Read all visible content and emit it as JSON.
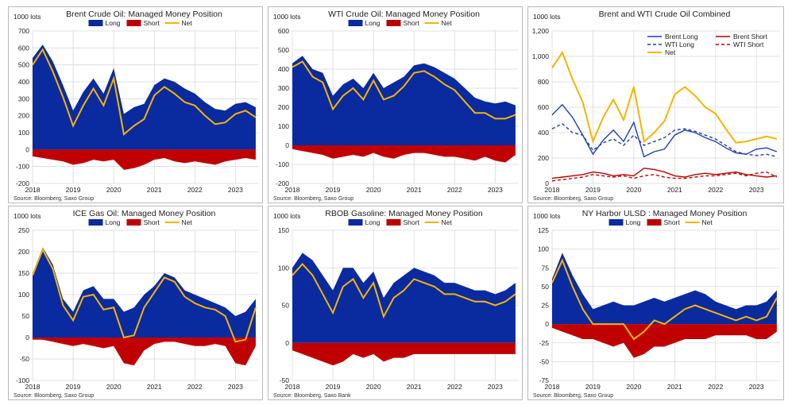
{
  "colors": {
    "long": "#0a2aa0",
    "short": "#c00000",
    "net": "#f5b400",
    "combined_long": "#1f3fb8",
    "combined_short": "#c00000",
    "combined_net": "#f5b400"
  },
  "chart_data": [
    {
      "type": "area",
      "title": "Brent Crude Oil: Managed Money Position",
      "unit": "1000 lots",
      "legend": [
        "Long",
        "Short",
        "Net"
      ],
      "legend_position": "top",
      "source": "Source: Bloomberg, Saxo Group",
      "x_ticks": [
        "2018",
        "2019",
        "2020",
        "2021",
        "2022",
        "2023"
      ],
      "y_ticks": [
        "700",
        "600",
        "500",
        "400",
        "300",
        "200",
        "100",
        "0",
        "-100",
        "-200"
      ],
      "ylim": [
        -200,
        700
      ],
      "x": [
        2018.0,
        2018.25,
        2018.5,
        2018.75,
        2019.0,
        2019.25,
        2019.5,
        2019.75,
        2020.0,
        2020.25,
        2020.5,
        2020.75,
        2021.0,
        2021.25,
        2021.5,
        2021.75,
        2022.0,
        2022.25,
        2022.5,
        2022.75,
        2023.0,
        2023.25,
        2023.5
      ],
      "series": [
        {
          "name": "Long",
          "values": [
            540,
            620,
            520,
            380,
            230,
            340,
            420,
            330,
            480,
            210,
            250,
            270,
            380,
            420,
            400,
            360,
            330,
            280,
            240,
            230,
            270,
            280,
            250
          ]
        },
        {
          "name": "Short",
          "values": [
            -40,
            -50,
            -60,
            -70,
            -90,
            -80,
            -60,
            -70,
            -60,
            -120,
            -110,
            -90,
            -60,
            -50,
            -70,
            -80,
            -70,
            -80,
            -90,
            -70,
            -60,
            -50,
            -60
          ]
        },
        {
          "name": "Net",
          "values": [
            500,
            590,
            460,
            310,
            140,
            260,
            360,
            260,
            420,
            90,
            140,
            180,
            320,
            370,
            330,
            280,
            260,
            200,
            150,
            160,
            210,
            230,
            190
          ]
        }
      ]
    },
    {
      "type": "area",
      "title": "WTI Crude Oil: Managed Money Position",
      "unit": "1000 lots",
      "legend": [
        "Long",
        "Short",
        "Net"
      ],
      "legend_position": "top",
      "source": "Source: Bloomberg, Saxo Group",
      "x_ticks": [
        "2018",
        "2019",
        "2020",
        "2021",
        "2022",
        "2023"
      ],
      "y_ticks": [
        "600",
        "500",
        "400",
        "300",
        "200",
        "100",
        "0",
        "-100",
        "-200"
      ],
      "ylim": [
        -200,
        600
      ],
      "x": [
        2018.0,
        2018.25,
        2018.5,
        2018.75,
        2019.0,
        2019.25,
        2019.5,
        2019.75,
        2020.0,
        2020.25,
        2020.5,
        2020.75,
        2021.0,
        2021.25,
        2021.5,
        2021.75,
        2022.0,
        2022.25,
        2022.5,
        2022.75,
        2023.0,
        2023.25,
        2023.5
      ],
      "series": [
        {
          "name": "Long",
          "values": [
            430,
            470,
            400,
            380,
            260,
            320,
            350,
            300,
            380,
            300,
            330,
            360,
            420,
            430,
            410,
            380,
            350,
            300,
            250,
            230,
            220,
            230,
            210
          ]
        },
        {
          "name": "Short",
          "values": [
            -20,
            -30,
            -40,
            -50,
            -70,
            -60,
            -50,
            -60,
            -40,
            -60,
            -70,
            -50,
            -40,
            -40,
            -50,
            -60,
            -60,
            -70,
            -80,
            -60,
            -80,
            -90,
            -50
          ]
        },
        {
          "name": "Net",
          "values": [
            410,
            440,
            360,
            330,
            190,
            260,
            300,
            240,
            340,
            240,
            260,
            310,
            380,
            390,
            360,
            320,
            290,
            230,
            170,
            170,
            140,
            140,
            160
          ]
        }
      ]
    },
    {
      "type": "line",
      "title": "Brent and WTI Crude Oil Combined",
      "unit": "1000 lots",
      "legend": [
        "Brent Long",
        "Brent Short",
        "WTI Long",
        "WTI Short",
        "Net"
      ],
      "legend_position": "top-right",
      "source": "Source: Bloomberg, Saxo Group",
      "x_ticks": [
        "2018",
        "2019",
        "2020",
        "2021",
        "2022",
        "2023"
      ],
      "y_ticks": [
        "1,200",
        "1,000",
        "800",
        "600",
        "400",
        "200",
        "0"
      ],
      "ylim": [
        0,
        1200
      ],
      "x": [
        2018.0,
        2018.25,
        2018.5,
        2018.75,
        2019.0,
        2019.25,
        2019.5,
        2019.75,
        2020.0,
        2020.25,
        2020.5,
        2020.75,
        2021.0,
        2021.25,
        2021.5,
        2021.75,
        2022.0,
        2022.25,
        2022.5,
        2022.75,
        2023.0,
        2023.25,
        2023.5
      ],
      "series": [
        {
          "name": "Brent Long",
          "values": [
            540,
            620,
            520,
            380,
            230,
            340,
            420,
            330,
            480,
            210,
            250,
            270,
            380,
            420,
            400,
            360,
            330,
            280,
            240,
            230,
            270,
            280,
            250
          ]
        },
        {
          "name": "Brent Short",
          "values": [
            40,
            50,
            60,
            70,
            90,
            80,
            60,
            70,
            60,
            120,
            110,
            90,
            60,
            50,
            70,
            80,
            70,
            80,
            90,
            70,
            60,
            50,
            60
          ]
        },
        {
          "name": "WTI Long",
          "values": [
            430,
            470,
            400,
            380,
            260,
            320,
            350,
            300,
            380,
            300,
            330,
            360,
            420,
            430,
            410,
            380,
            350,
            300,
            250,
            230,
            220,
            230,
            210
          ]
        },
        {
          "name": "WTI Short",
          "values": [
            20,
            30,
            40,
            50,
            70,
            60,
            50,
            60,
            40,
            60,
            70,
            50,
            40,
            40,
            50,
            60,
            60,
            70,
            80,
            60,
            80,
            90,
            50
          ]
        },
        {
          "name": "Net",
          "values": [
            910,
            1030,
            820,
            640,
            330,
            520,
            660,
            500,
            760,
            330,
            400,
            490,
            700,
            760,
            690,
            600,
            550,
            430,
            320,
            330,
            350,
            370,
            350
          ]
        }
      ]
    },
    {
      "type": "area",
      "title": "ICE Gas Oil: Managed Money Position",
      "unit": "1000 lots",
      "legend": [
        "Long",
        "Short",
        "Net"
      ],
      "legend_position": "top",
      "source": "Source: Bloomberg, Saxo Group",
      "x_ticks": [
        "2018",
        "2019",
        "2020",
        "2021",
        "2022",
        "2023"
      ],
      "y_ticks": [
        "250",
        "200",
        "150",
        "100",
        "50",
        "0",
        "-50",
        "-100"
      ],
      "ylim": [
        -100,
        250
      ],
      "x": [
        2018.0,
        2018.25,
        2018.5,
        2018.75,
        2019.0,
        2019.25,
        2019.5,
        2019.75,
        2020.0,
        2020.25,
        2020.5,
        2020.75,
        2021.0,
        2021.25,
        2021.5,
        2021.75,
        2022.0,
        2022.25,
        2022.5,
        2022.75,
        2023.0,
        2023.25,
        2023.5
      ],
      "series": [
        {
          "name": "Long",
          "values": [
            150,
            210,
            170,
            90,
            60,
            110,
            120,
            90,
            90,
            60,
            70,
            100,
            120,
            150,
            140,
            110,
            100,
            90,
            80,
            70,
            50,
            60,
            90
          ]
        },
        {
          "name": "Short",
          "values": [
            -5,
            -5,
            -10,
            -15,
            -20,
            -15,
            -20,
            -25,
            -20,
            -60,
            -65,
            -30,
            -15,
            -10,
            -10,
            -15,
            -20,
            -20,
            -15,
            -20,
            -60,
            -65,
            -20
          ]
        },
        {
          "name": "Net",
          "values": [
            145,
            205,
            160,
            75,
            40,
            95,
            100,
            65,
            70,
            0,
            5,
            70,
            105,
            140,
            130,
            95,
            80,
            70,
            65,
            50,
            -10,
            -5,
            70
          ]
        }
      ]
    },
    {
      "type": "area",
      "title": "RBOB Gasoline: Managed Money Position",
      "unit": "1000 lots",
      "legend": [
        "Long",
        "Short",
        "Net"
      ],
      "legend_position": "top",
      "source": "Source: Bloomberg, Saxo Bank",
      "x_ticks": [
        "2018",
        "2019",
        "2020",
        "2021",
        "2022",
        "2023"
      ],
      "y_ticks": [
        "150",
        "100",
        "50",
        "0",
        "-50"
      ],
      "ylim": [
        -50,
        150
      ],
      "x": [
        2018.0,
        2018.25,
        2018.5,
        2018.75,
        2019.0,
        2019.25,
        2019.5,
        2019.75,
        2020.0,
        2020.25,
        2020.5,
        2020.75,
        2021.0,
        2021.25,
        2021.5,
        2021.75,
        2022.0,
        2022.25,
        2022.5,
        2022.75,
        2023.0,
        2023.25,
        2023.5
      ],
      "series": [
        {
          "name": "Long",
          "values": [
            100,
            120,
            110,
            90,
            70,
            100,
            100,
            80,
            95,
            60,
            80,
            90,
            100,
            95,
            90,
            80,
            80,
            75,
            70,
            70,
            65,
            70,
            80
          ]
        },
        {
          "name": "Short",
          "values": [
            -10,
            -15,
            -20,
            -25,
            -30,
            -25,
            -15,
            -20,
            -15,
            -25,
            -20,
            -20,
            -15,
            -15,
            -15,
            -15,
            -15,
            -15,
            -15,
            -15,
            -15,
            -15,
            -15
          ]
        },
        {
          "name": "Net",
          "values": [
            90,
            105,
            90,
            65,
            40,
            75,
            85,
            60,
            80,
            35,
            60,
            70,
            85,
            80,
            75,
            65,
            65,
            60,
            55,
            55,
            50,
            55,
            65
          ]
        }
      ]
    },
    {
      "type": "area",
      "title": "NY Harbor ULSD : Managed Money Position",
      "unit": "1000 lots",
      "legend": [
        "Long",
        "Short",
        "Net"
      ],
      "legend_position": "top",
      "source": "Source: Bloomberg, Saxo Group",
      "x_ticks": [
        "2018",
        "2019",
        "2020",
        "2021",
        "2022",
        "2023"
      ],
      "y_ticks": [
        "125",
        "100",
        "75",
        "50",
        "25",
        "0",
        "-25",
        "-50",
        "-75"
      ],
      "ylim": [
        -75,
        125
      ],
      "x": [
        2018.0,
        2018.25,
        2018.5,
        2018.75,
        2019.0,
        2019.25,
        2019.5,
        2019.75,
        2020.0,
        2020.25,
        2020.5,
        2020.75,
        2021.0,
        2021.25,
        2021.5,
        2021.75,
        2022.0,
        2022.25,
        2022.5,
        2022.75,
        2023.0,
        2023.25,
        2023.5
      ],
      "series": [
        {
          "name": "Long",
          "values": [
            60,
            95,
            65,
            40,
            20,
            25,
            30,
            25,
            25,
            30,
            35,
            30,
            35,
            40,
            45,
            40,
            30,
            25,
            20,
            25,
            25,
            30,
            45
          ]
        },
        {
          "name": "Short",
          "values": [
            -5,
            -10,
            -15,
            -20,
            -20,
            -25,
            -30,
            -25,
            -45,
            -40,
            -30,
            -30,
            -25,
            -20,
            -20,
            -20,
            -15,
            -15,
            -15,
            -15,
            -20,
            -20,
            -10
          ]
        },
        {
          "name": "Net",
          "values": [
            55,
            85,
            50,
            20,
            0,
            0,
            0,
            0,
            -20,
            -10,
            5,
            0,
            10,
            20,
            25,
            20,
            15,
            10,
            5,
            10,
            5,
            10,
            35
          ]
        }
      ]
    }
  ]
}
